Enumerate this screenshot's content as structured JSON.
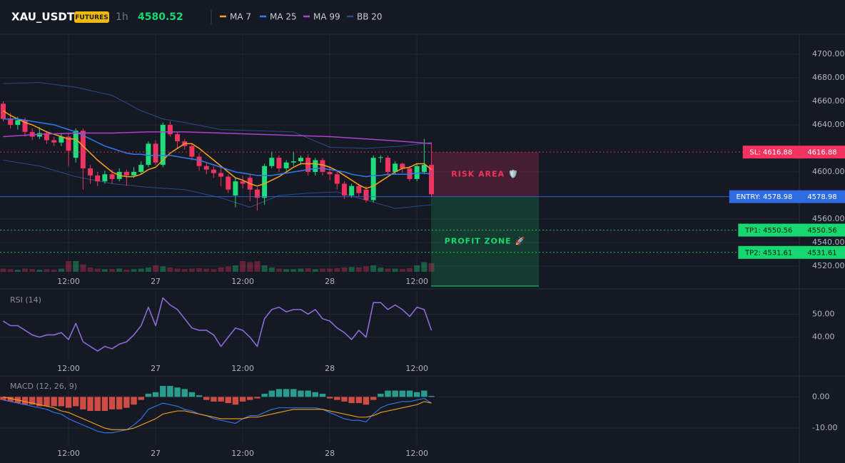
{
  "header": {
    "symbol": "XAU_USDT",
    "badge": "FUTURES",
    "interval": "1h",
    "price": 4580.52
  },
  "chart_data": [
    {
      "type": "candlestick",
      "xticks": [
        {
          "value": 9,
          "label": "12:00"
        },
        {
          "value": 21,
          "label": "27"
        },
        {
          "value": 33,
          "label": "12:00"
        },
        {
          "value": 45,
          "label": "28"
        },
        {
          "value": 57,
          "label": "12:00"
        }
      ],
      "ylim": [
        4503,
        4717
      ],
      "yticks": [
        {
          "value": 4520,
          "label": "4520.00"
        },
        {
          "value": 4540,
          "label": "4540.00"
        },
        {
          "value": 4560,
          "label": "4560.00"
        },
        {
          "value": 4600,
          "label": "4600.00"
        },
        {
          "value": 4640,
          "label": "4640.00"
        },
        {
          "value": 4660,
          "label": "4660.00"
        },
        {
          "value": 4680,
          "label": "4680.00"
        },
        {
          "value": 4700,
          "label": "4700.00"
        }
      ],
      "grid": true,
      "up_color": "#1fdc7c",
      "down_color": "#f0335f",
      "open": [
        4658,
        4645,
        4640,
        4644,
        4634,
        4630,
        4633,
        4627,
        4625,
        4630,
        4612,
        4635,
        4603,
        4597,
        4592,
        4598,
        4594,
        4600,
        4597,
        4600,
        4606,
        4624,
        4606,
        4640,
        4632,
        4626,
        4622,
        4613,
        4605,
        4602,
        4599,
        4596,
        4580,
        4592,
        4595,
        4585,
        4578,
        4605,
        4612,
        4603,
        4608,
        4609,
        4612,
        4600,
        4610,
        4600,
        4598,
        4590,
        4580,
        4588,
        4585,
        4576,
        4612,
        4612,
        4600,
        4607,
        4603,
        4594,
        4600,
        4606
      ],
      "high": [
        4660,
        4650,
        4647,
        4646,
        4637,
        4638,
        4635,
        4630,
        4633,
        4633,
        4637,
        4637,
        4606,
        4600,
        4601,
        4602,
        4603,
        4602,
        4604,
        4609,
        4626,
        4627,
        4642,
        4643,
        4634,
        4628,
        4624,
        4616,
        4608,
        4605,
        4604,
        4598,
        4595,
        4597,
        4598,
        4587,
        4607,
        4617,
        4614,
        4610,
        4617,
        4614,
        4615,
        4612,
        4612,
        4604,
        4601,
        4592,
        4590,
        4590,
        4588,
        4614,
        4614,
        4614,
        4609,
        4608,
        4605,
        4607,
        4628,
        4625
      ],
      "low": [
        4643,
        4637,
        4636,
        4630,
        4627,
        4628,
        4624,
        4622,
        4622,
        4605,
        4608,
        4585,
        4590,
        4588,
        4590,
        4590,
        4592,
        4588,
        4595,
        4598,
        4604,
        4606,
        4604,
        4630,
        4620,
        4619,
        4610,
        4601,
        4598,
        4595,
        4588,
        4582,
        4570,
        4586,
        4575,
        4567,
        4572,
        4603,
        4600,
        4601,
        4605,
        4606,
        4597,
        4597,
        4597,
        4593,
        4585,
        4577,
        4578,
        4579,
        4574,
        4574,
        4608,
        4597,
        4598,
        4599,
        4592,
        4592,
        4598,
        4579
      ],
      "close": [
        4645,
        4640,
        4644,
        4634,
        4630,
        4633,
        4627,
        4625,
        4630,
        4618,
        4635,
        4603,
        4597,
        4592,
        4598,
        4594,
        4600,
        4597,
        4600,
        4606,
        4624,
        4608,
        4640,
        4632,
        4626,
        4622,
        4613,
        4605,
        4602,
        4599,
        4596,
        4585,
        4592,
        4590,
        4585,
        4578,
        4605,
        4612,
        4603,
        4608,
        4609,
        4612,
        4600,
        4610,
        4600,
        4598,
        4590,
        4580,
        4588,
        4582,
        4576,
        4612,
        4612.5,
        4600,
        4607,
        4603,
        4594,
        4605,
        4606,
        4581
      ],
      "series": [
        {
          "name": "MA 7",
          "color": "#f7a21b",
          "values": [
            4652,
            4648,
            4645,
            4642,
            4640,
            4637,
            4634,
            4632,
            4630,
            4628,
            4628,
            4622,
            4616,
            4610,
            4605,
            4600,
            4597,
            4596,
            4596,
            4598,
            4602,
            4604,
            4610,
            4616,
            4620,
            4624,
            4624,
            4620,
            4615,
            4610,
            4605,
            4600,
            4595,
            4593,
            4590,
            4588,
            4590,
            4593,
            4596,
            4600,
            4604,
            4607,
            4607,
            4607,
            4606,
            4604,
            4601,
            4597,
            4593,
            4589,
            4586,
            4588,
            4592,
            4596,
            4600,
            4603,
            4604,
            4607,
            4607,
            4602
          ]
        },
        {
          "name": "MA 25",
          "color": "#2f7bef",
          "values": [
            4645,
            4645,
            4645,
            4644,
            4643,
            4642,
            4641,
            4640,
            4638,
            4636,
            4634,
            4631,
            4628,
            4625,
            4622,
            4620,
            4618,
            4616,
            4615,
            4615,
            4614,
            4614,
            4614,
            4614,
            4613,
            4612,
            4611,
            4610,
            4608,
            4606,
            4604,
            4602,
            4600,
            4599,
            4598,
            4597,
            4597,
            4597,
            4598,
            4599,
            4600,
            4601,
            4602,
            4603,
            4603,
            4602,
            4601,
            4600,
            4598,
            4597,
            4596,
            4597,
            4597,
            4598,
            4598,
            4598,
            4598,
            4599,
            4599,
            4598
          ]
        },
        {
          "name": "MA 99",
          "color": "#b040d0",
          "x": [
            0,
            5,
            10,
            15,
            20,
            25,
            30,
            35,
            40,
            45,
            50,
            55,
            59
          ],
          "values": [
            4630,
            4632,
            4633,
            4633,
            4634,
            4634,
            4633,
            4632,
            4631,
            4630,
            4628,
            4626,
            4624
          ]
        },
        {
          "name": "BB 20",
          "color": "#2b4a86",
          "bands": [
            {
              "x": [
                0,
                5,
                10,
                15,
                19,
                22,
                25,
                30,
                35,
                40,
                45,
                50,
                55,
                59
              ],
              "values": [
                4675,
                4676,
                4672,
                4665,
                4652,
                4645,
                4642,
                4636,
                4635,
                4634,
                4621,
                4620,
                4622,
                4625
              ]
            },
            {
              "x": [
                0,
                5,
                10,
                15,
                20,
                25,
                30,
                34,
                38,
                42,
                46,
                50,
                54,
                59
              ],
              "values": [
                4610,
                4605,
                4596,
                4590,
                4587,
                4585,
                4578,
                4570,
                4580,
                4582,
                4583,
                4576,
                4569,
                4572
              ]
            }
          ]
        }
      ],
      "volume": {
        "ylim": [
          0,
          400
        ],
        "values": [
          30,
          25,
          20,
          30,
          25,
          20,
          25,
          20,
          30,
          100,
          100,
          70,
          40,
          30,
          25,
          25,
          30,
          20,
          25,
          30,
          40,
          60,
          50,
          40,
          30,
          25,
          30,
          35,
          30,
          25,
          40,
          50,
          60,
          100,
          90,
          100,
          60,
          40,
          30,
          25,
          25,
          30,
          35,
          25,
          30,
          30,
          35,
          40,
          45,
          40,
          50,
          60,
          40,
          30,
          30,
          25,
          35,
          60,
          90,
          80
        ]
      },
      "levels": [
        {
          "tag": "SL: 4616.88",
          "value": 4616.88,
          "color": "#f0335f",
          "text_color": "#ffffff",
          "line": "dotted"
        },
        {
          "tag": "ENTRY: 4578.98",
          "value": 4578.98,
          "color": "#2f6be0",
          "text_color": "#ffffff",
          "line": "solid"
        },
        {
          "tag": "TP1: 4550.56",
          "value": 4550.56,
          "color": "#16d870",
          "text_color": "#0b1a12",
          "line": "dotted"
        },
        {
          "tag": "TP2: 4531.61",
          "value": 4531.61,
          "color": "#16d870",
          "text_color": "#0b1a12",
          "line": "dotted"
        }
      ],
      "zones": [
        {
          "label": "RISK AREA 🛡️",
          "color": "#f0335f"
        },
        {
          "label": "PROFIT ZONE 🚀",
          "color": "#16d870"
        }
      ]
    },
    {
      "type": "line",
      "title": "RSI (14)",
      "color": "#8c6ad8",
      "xticks": [
        {
          "value": 9,
          "label": "12:00"
        },
        {
          "value": 21,
          "label": "27"
        },
        {
          "value": 33,
          "label": "12:00"
        },
        {
          "value": 45,
          "label": "28"
        },
        {
          "value": 57,
          "label": "12:00"
        }
      ],
      "ylim": [
        30,
        60
      ],
      "yticks": [
        {
          "value": 40,
          "label": "40.00"
        },
        {
          "value": 50,
          "label": "50.00"
        }
      ],
      "values": [
        47,
        45,
        45,
        43,
        41,
        40,
        41,
        41,
        42,
        39,
        46,
        38,
        36,
        34,
        36,
        35,
        37,
        38,
        41,
        45,
        53,
        45,
        57,
        54,
        52,
        48,
        44,
        43,
        43,
        41,
        36,
        40,
        44,
        43,
        40,
        36,
        48,
        52,
        53,
        51,
        52,
        52,
        50,
        52,
        48,
        47,
        44,
        42,
        39,
        43,
        40,
        55,
        55,
        52,
        54,
        52,
        49,
        53,
        52,
        43
      ]
    },
    {
      "type": "macd",
      "title": "MACD (12, 26, 9)",
      "xticks": [
        {
          "value": 9,
          "label": "12:00"
        },
        {
          "value": 21,
          "label": "27"
        },
        {
          "value": 33,
          "label": "12:00"
        },
        {
          "value": 45,
          "label": "28"
        },
        {
          "value": 57,
          "label": "12:00"
        }
      ],
      "ylim": [
        -15,
        6
      ],
      "yticks": [
        {
          "value": -10,
          "label": "-10.00"
        },
        {
          "value": 0,
          "label": "0.00"
        }
      ],
      "histogram": {
        "up_color": "#2bb5a0",
        "down_color": "#f0564a",
        "values": [
          -1,
          -1.5,
          -2,
          -2.5,
          -2.5,
          -3,
          -3,
          -3,
          -3,
          -3.5,
          -3,
          -4,
          -4.5,
          -4.5,
          -4.5,
          -4,
          -4,
          -3.5,
          -2.5,
          -1,
          1,
          1.5,
          3.5,
          3.5,
          3,
          2.5,
          1.5,
          0.5,
          -1,
          -1.5,
          -1.5,
          -2,
          -2.5,
          -1.5,
          -1,
          -0.5,
          1,
          2,
          2.5,
          2.5,
          2.5,
          2,
          2,
          1.5,
          1,
          -0.5,
          -1,
          -1.5,
          -2,
          -2,
          -2.5,
          -1,
          1,
          2,
          2,
          2,
          2,
          1.5,
          2,
          0.3
        ]
      },
      "series": [
        {
          "color": "#2f7bef",
          "values": [
            -1,
            -1.5,
            -2,
            -2.5,
            -3,
            -3.5,
            -4,
            -5,
            -5.5,
            -7,
            -8,
            -9,
            -10,
            -11,
            -11.5,
            -11.5,
            -11,
            -10.5,
            -9,
            -7,
            -4,
            -3,
            -2,
            -2.5,
            -3,
            -4,
            -4.5,
            -5.5,
            -6,
            -7,
            -7.5,
            -8,
            -8.5,
            -7,
            -6,
            -6,
            -5,
            -4,
            -3.5,
            -3.5,
            -3.5,
            -3.5,
            -3.5,
            -3.5,
            -4,
            -5,
            -6,
            -7,
            -7.5,
            -7.5,
            -8,
            -5.5,
            -3.5,
            -2.5,
            -2,
            -1.5,
            -1.5,
            -1,
            -0.5,
            -2
          ]
        },
        {
          "color": "#f7a21b",
          "values": [
            0,
            -0.5,
            -1,
            -1.5,
            -2,
            -2.5,
            -3,
            -3.5,
            -4.5,
            -5,
            -6,
            -7,
            -8,
            -9,
            -10,
            -10.5,
            -10.5,
            -10.5,
            -10,
            -9,
            -8,
            -7,
            -5.5,
            -5,
            -4.5,
            -4.5,
            -5,
            -5.5,
            -6,
            -6.5,
            -7,
            -7,
            -7,
            -7,
            -6.5,
            -6.5,
            -6,
            -5.5,
            -5,
            -4.5,
            -4,
            -4,
            -4,
            -4,
            -4,
            -4.5,
            -5,
            -5.5,
            -6,
            -6.5,
            -6.5,
            -6,
            -5,
            -4.5,
            -4,
            -3.5,
            -3,
            -2.5,
            -1.5,
            -2
          ]
        }
      ]
    }
  ]
}
